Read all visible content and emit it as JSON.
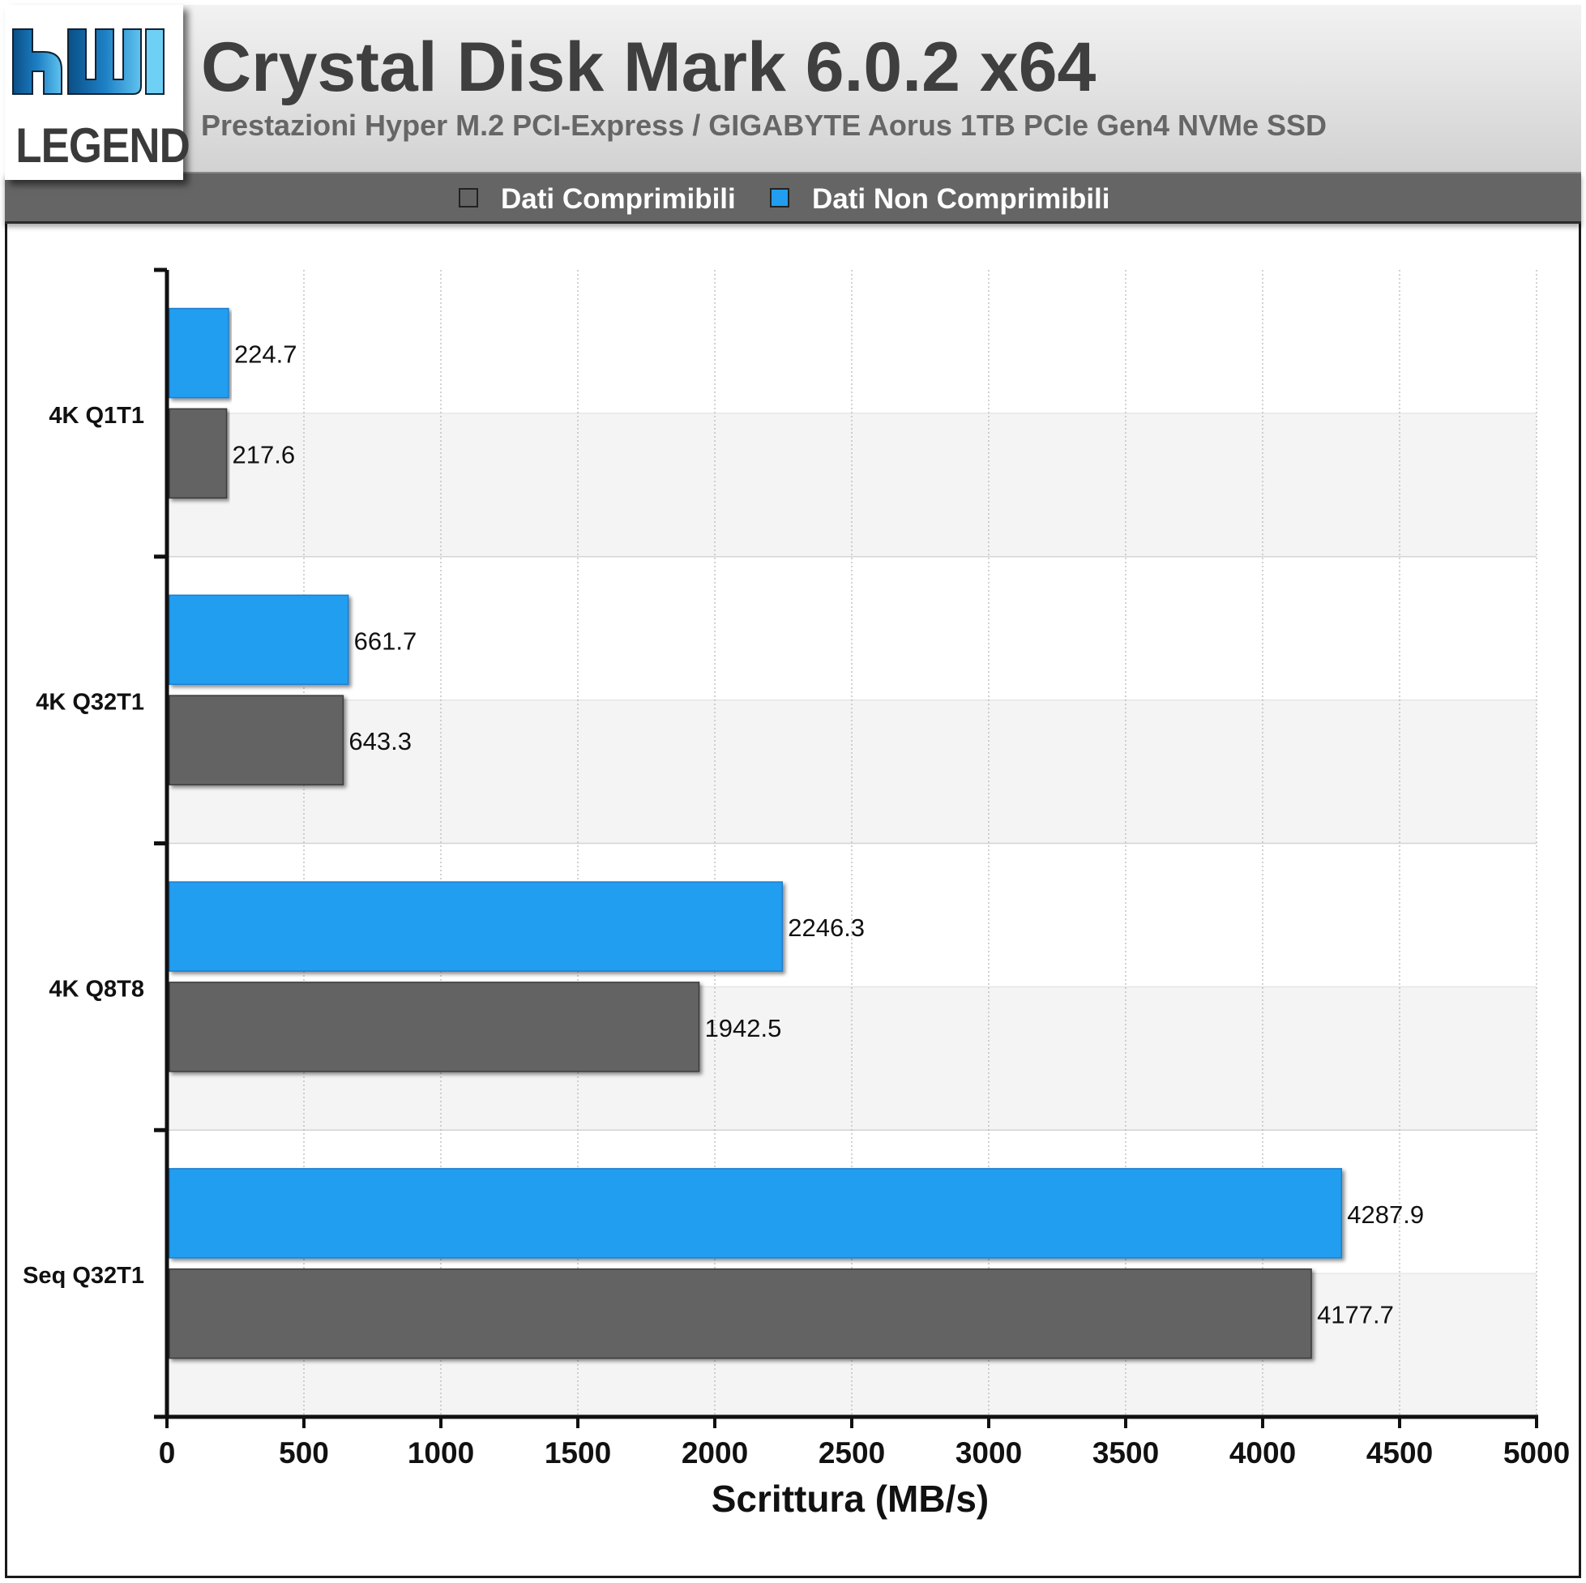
{
  "logo": {
    "text": "LEGEND"
  },
  "header": {
    "title": "Crystal Disk Mark 6.0.2 x64",
    "subtitle": "Prestazioni Hyper M.2 PCI-Express / GIGABYTE Aorus 1TB PCIe Gen4 NVMe SSD"
  },
  "legend": [
    {
      "label": "Dati Comprimibili",
      "color": "#636363"
    },
    {
      "label": "Dati Non Comprimibili",
      "color": "#219ef0"
    }
  ],
  "chart_data": {
    "type": "bar",
    "orientation": "horizontal",
    "categories": [
      "4K Q1T1",
      "4K Q32T1",
      "4K Q8T8",
      "Seq Q32T1"
    ],
    "series": [
      {
        "name": "Dati Non Comprimibili",
        "color": "#219ef0",
        "values": [
          224.7,
          661.7,
          2246.3,
          4287.9
        ]
      },
      {
        "name": "Dati Comprimibili",
        "color": "#636363",
        "values": [
          217.6,
          643.3,
          1942.5,
          4177.7
        ]
      }
    ],
    "xlabel": "Scrittura (MB/s)",
    "ylabel": "",
    "xlim": [
      0,
      5000
    ],
    "xticks": [
      0,
      500,
      1000,
      1500,
      2000,
      2500,
      3000,
      3500,
      4000,
      4500,
      5000
    ],
    "data_labels": true,
    "grid": true,
    "legend_position": "top"
  }
}
